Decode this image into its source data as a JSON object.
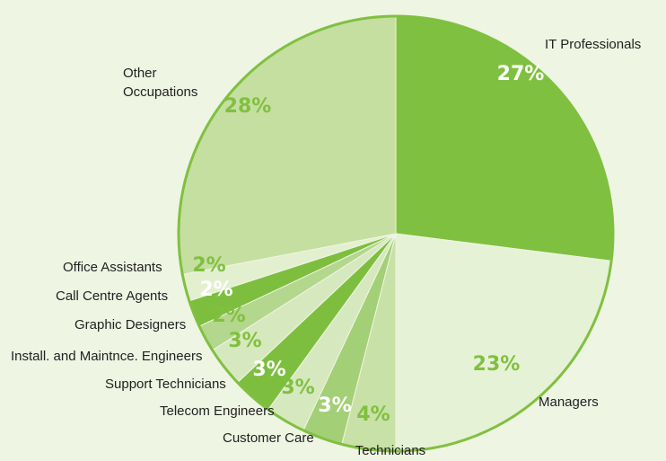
{
  "chart_data": {
    "type": "pie",
    "categories": [
      "IT Professionals",
      "Managers",
      "Technicians",
      "Customer Care",
      "Telecom Engineers",
      "Support Technicians",
      "Install. and Maintnce. Engineers",
      "Graphic Designers",
      "Call Centre Agents",
      "Office Assistants",
      "Other Occupations"
    ],
    "values": [
      27,
      23,
      4,
      3,
      3,
      3,
      3,
      2,
      2,
      2,
      28
    ],
    "value_labels": [
      "27%",
      "23%",
      "4%",
      "3%",
      "3%",
      "3%",
      "3%",
      "2%",
      "2%",
      "2%",
      "28%"
    ],
    "colors": [
      "#80c040",
      "#e6f2d6",
      "#c8e1a6",
      "#a3cf76",
      "#d6e9be",
      "#7dbe3e",
      "#d6e9be",
      "#b3d78c",
      "#7dbe3e",
      "#e3f0d0",
      "#c5dfa0"
    ]
  }
}
